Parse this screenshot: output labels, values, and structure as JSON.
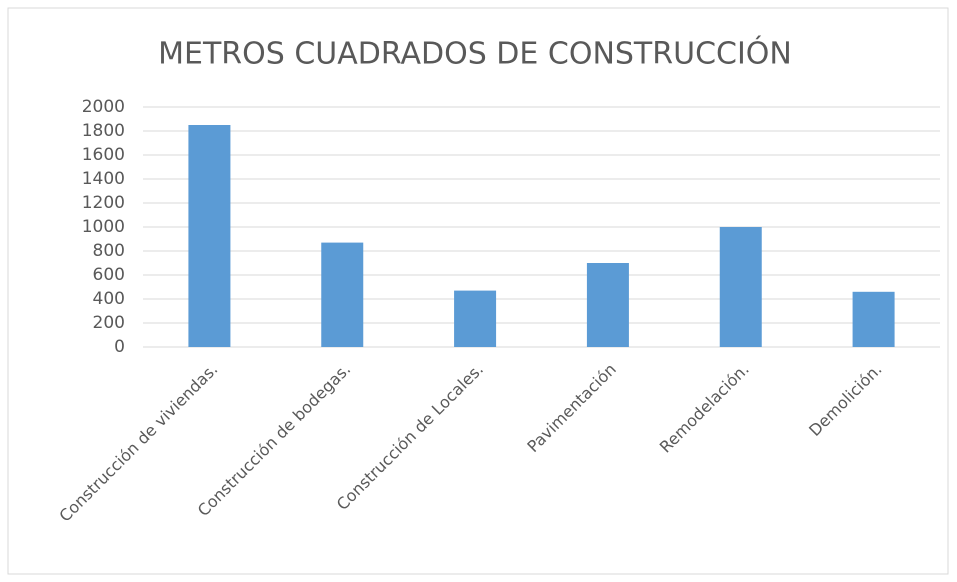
{
  "chart_data": {
    "type": "bar",
    "title": "METROS CUADRADOS DE CONSTRUCCIÓN",
    "categories": [
      "Construcción de viviendas.",
      "Construcción de bodegas.",
      "Construcción de Locales.",
      "Pavimentación",
      "Remodelación.",
      "Demolición."
    ],
    "values": [
      1850,
      870,
      470,
      700,
      1000,
      460
    ],
    "color": "#5b9bd5",
    "ylim": [
      0,
      2000
    ],
    "yticks": [
      0,
      200,
      400,
      600,
      800,
      1000,
      1200,
      1400,
      1600,
      1800,
      2000
    ],
    "grid": true
  }
}
